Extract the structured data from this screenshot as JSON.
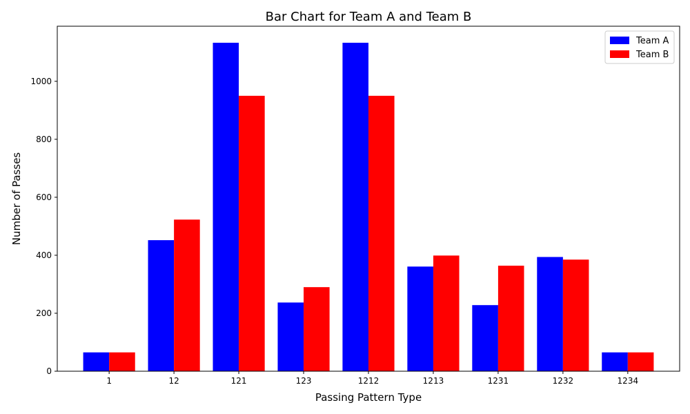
{
  "chart_data": {
    "type": "bar",
    "title": "Bar Chart for Team A and Team B",
    "xlabel": "Passing Pattern Type",
    "ylabel": "Number of Passes",
    "categories": [
      "1",
      "12",
      "121",
      "123",
      "1212",
      "1213",
      "1231",
      "1232",
      "1234"
    ],
    "series": [
      {
        "name": "Team A",
        "color": "#0000ff",
        "values": [
          65,
          452,
          1133,
          237,
          1133,
          361,
          228,
          394,
          65
        ]
      },
      {
        "name": "Team B",
        "color": "#ff0000",
        "values": [
          65,
          523,
          950,
          290,
          950,
          399,
          364,
          385,
          65
        ]
      }
    ],
    "ylim": [
      0,
      1190
    ],
    "yticks": [
      0,
      200,
      400,
      600,
      800,
      1000
    ],
    "legend_position": "top-right",
    "grid": false
  }
}
